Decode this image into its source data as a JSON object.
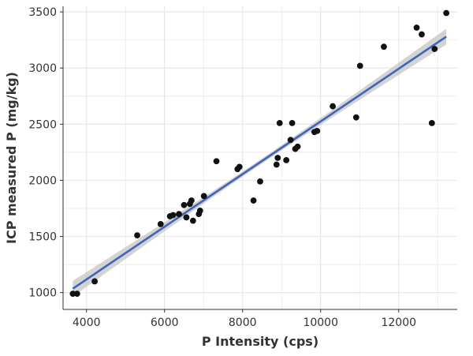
{
  "chart_data": {
    "type": "scatter",
    "xlabel": "P Intensity (cps)",
    "ylabel": "ICP measured P (mg/kg)",
    "xlim": [
      3400,
      13500
    ],
    "ylim": [
      850,
      3550
    ],
    "xticks": [
      4000,
      6000,
      8000,
      10000,
      12000
    ],
    "xtick_labels": [
      "4000",
      "6000",
      "8000",
      "10000",
      "12000"
    ],
    "yticks": [
      1000,
      1500,
      2000,
      2500,
      3000,
      3500
    ],
    "ytick_labels": [
      "1000",
      "1500",
      "2000",
      "2500",
      "3000",
      "3500"
    ],
    "grid": true,
    "points": {
      "x": [
        3650,
        3760,
        4210,
        5300,
        5900,
        6140,
        6220,
        6370,
        6500,
        6560,
        6650,
        6690,
        6730,
        6880,
        6910,
        7010,
        7330,
        7870,
        7920,
        8280,
        8450,
        8870,
        8900,
        8950,
        9120,
        9230,
        9270,
        9350,
        9410,
        9840,
        9910,
        10310,
        10910,
        11010,
        11620,
        12460,
        12590,
        12850,
        12920,
        13220
      ],
      "y": [
        990,
        990,
        1100,
        1510,
        1610,
        1680,
        1690,
        1700,
        1780,
        1670,
        1790,
        1820,
        1640,
        1700,
        1730,
        1860,
        2170,
        2100,
        2120,
        1820,
        1990,
        2140,
        2200,
        2510,
        2180,
        2360,
        2510,
        2280,
        2300,
        2430,
        2440,
        2660,
        2560,
        3020,
        3190,
        3360,
        3300,
        2510,
        3170,
        3490
      ]
    },
    "trend": {
      "x_start": 3650,
      "y_start": 1035,
      "x_end": 13220,
      "y_end": 3280,
      "band_halfwidth_ends": 70,
      "band_halfwidth_center": 22
    },
    "colors": {
      "point": "#111111",
      "line": "#3f65b6",
      "band": "#c4c4c4",
      "grid": "#e6e6e6",
      "axis": "#333333"
    }
  }
}
